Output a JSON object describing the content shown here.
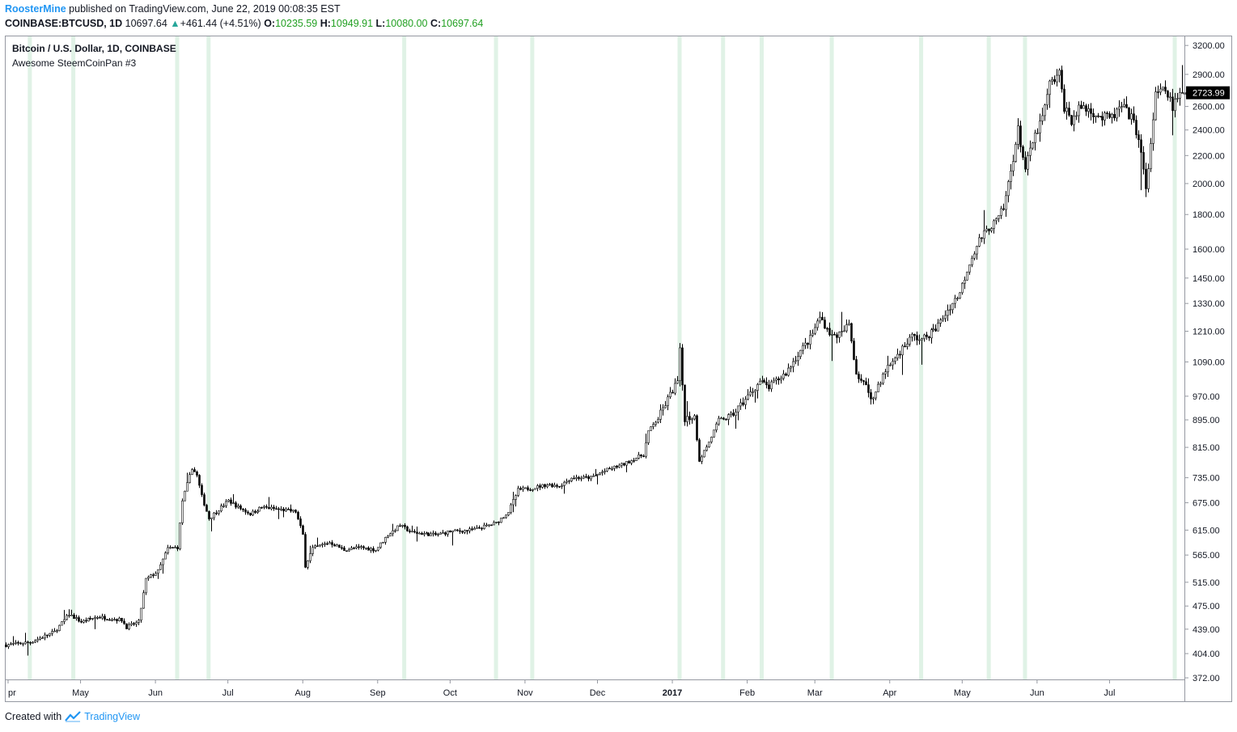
{
  "header": {
    "author": "RoosterMine",
    "published_text": " published on TradingView.com, June 22, 2019 00:08:35 EST",
    "symbol": "COINBASE:BTCUSD, 1D",
    "last_price": "10697.64",
    "change_arrow": "▲",
    "change": "+461.44 (+4.51%)",
    "o_label": "O:",
    "o_value": "10235.59",
    "h_label": "H:",
    "h_value": "10949.91",
    "l_label": "L:",
    "l_value": "10080.00",
    "c_label": "C:",
    "c_value": "10697.64"
  },
  "legend": {
    "title": "Bitcoin / U.S. Dollar, 1D, COINBASE",
    "indicator": "Awesome SteemCoinPan #3"
  },
  "footer": {
    "created_with": "Created with",
    "brand": "TradingView"
  },
  "colors": {
    "candle": "#000000",
    "highlight": "#e0f2e6",
    "price_label_bg": "#000000",
    "price_label_text": "#ffffff",
    "author": "#2196f3"
  },
  "chart_data": {
    "type": "candlestick",
    "scale": "log",
    "x_range": [
      "2016-03-31",
      "2017-08-01"
    ],
    "y_ticks": [
      3200.0,
      2900.0,
      2600.0,
      2400.0,
      2200.0,
      2000.0,
      1800.0,
      1600.0,
      1450.0,
      1330.0,
      1210.0,
      1090.0,
      970.0,
      895.0,
      815.0,
      735.0,
      675.0,
      615.0,
      565.0,
      515.0,
      475.0,
      439.0,
      404.0,
      372.0
    ],
    "x_ticks": [
      {
        "label": "pr",
        "date": "2016-04-01"
      },
      {
        "label": "May",
        "date": "2016-05-01"
      },
      {
        "label": "Jun",
        "date": "2016-06-01"
      },
      {
        "label": "Jul",
        "date": "2016-07-01"
      },
      {
        "label": "Aug",
        "date": "2016-08-01"
      },
      {
        "label": "Sep",
        "date": "2016-09-01"
      },
      {
        "label": "Oct",
        "date": "2016-10-01"
      },
      {
        "label": "Nov",
        "date": "2016-11-01"
      },
      {
        "label": "Dec",
        "date": "2016-12-01"
      },
      {
        "label": "2017",
        "date": "2017-01-01",
        "bold": true
      },
      {
        "label": "Feb",
        "date": "2017-02-01"
      },
      {
        "label": "Mar",
        "date": "2017-03-01"
      },
      {
        "label": "Apr",
        "date": "2017-04-01"
      },
      {
        "label": "May",
        "date": "2017-05-01"
      },
      {
        "label": "Jun",
        "date": "2017-06-01"
      },
      {
        "label": "Jul",
        "date": "2017-07-01"
      }
    ],
    "current_price": 2723.99,
    "current_price_label": "2723.99",
    "highlight_dates": [
      "2016-04-10",
      "2016-04-28",
      "2016-06-10",
      "2016-06-23",
      "2016-09-12",
      "2016-10-20",
      "2016-11-04",
      "2017-01-04",
      "2017-01-22",
      "2017-02-07",
      "2017-03-08",
      "2017-04-14",
      "2017-05-12",
      "2017-05-27",
      "2017-07-28"
    ],
    "path": [
      {
        "date": "2016-03-31",
        "price": 416
      },
      {
        "date": "2016-04-10",
        "price": 420
      },
      {
        "date": "2016-04-20",
        "price": 435
      },
      {
        "date": "2016-04-26",
        "price": 462
      },
      {
        "date": "2016-05-01",
        "price": 450
      },
      {
        "date": "2016-05-08",
        "price": 458
      },
      {
        "date": "2016-05-14",
        "price": 455
      },
      {
        "date": "2016-05-18",
        "price": 453
      },
      {
        "date": "2016-05-20",
        "price": 442
      },
      {
        "date": "2016-05-25",
        "price": 450
      },
      {
        "date": "2016-05-28",
        "price": 520
      },
      {
        "date": "2016-06-02",
        "price": 535
      },
      {
        "date": "2016-06-06",
        "price": 578
      },
      {
        "date": "2016-06-10",
        "price": 580
      },
      {
        "date": "2016-06-12",
        "price": 680
      },
      {
        "date": "2016-06-16",
        "price": 760
      },
      {
        "date": "2016-06-18",
        "price": 740
      },
      {
        "date": "2016-06-20",
        "price": 690
      },
      {
        "date": "2016-06-23",
        "price": 640
      },
      {
        "date": "2016-06-27",
        "price": 660
      },
      {
        "date": "2016-07-01",
        "price": 680
      },
      {
        "date": "2016-07-05",
        "price": 665
      },
      {
        "date": "2016-07-10",
        "price": 650
      },
      {
        "date": "2016-07-15",
        "price": 665
      },
      {
        "date": "2016-07-22",
        "price": 660
      },
      {
        "date": "2016-07-29",
        "price": 655
      },
      {
        "date": "2016-08-01",
        "price": 605
      },
      {
        "date": "2016-08-02",
        "price": 545
      },
      {
        "date": "2016-08-05",
        "price": 578
      },
      {
        "date": "2016-08-12",
        "price": 590
      },
      {
        "date": "2016-08-18",
        "price": 575
      },
      {
        "date": "2016-08-25",
        "price": 580
      },
      {
        "date": "2016-08-31",
        "price": 575
      },
      {
        "date": "2016-09-05",
        "price": 605
      },
      {
        "date": "2016-09-10",
        "price": 625
      },
      {
        "date": "2016-09-15",
        "price": 610
      },
      {
        "date": "2016-09-25",
        "price": 605
      },
      {
        "date": "2016-10-01",
        "price": 612
      },
      {
        "date": "2016-10-10",
        "price": 615
      },
      {
        "date": "2016-10-20",
        "price": 630
      },
      {
        "date": "2016-10-25",
        "price": 655
      },
      {
        "date": "2016-10-29",
        "price": 705
      },
      {
        "date": "2016-11-04",
        "price": 710
      },
      {
        "date": "2016-11-10",
        "price": 718
      },
      {
        "date": "2016-11-15",
        "price": 715
      },
      {
        "date": "2016-11-20",
        "price": 735
      },
      {
        "date": "2016-11-28",
        "price": 735
      },
      {
        "date": "2016-12-05",
        "price": 755
      },
      {
        "date": "2016-12-12",
        "price": 770
      },
      {
        "date": "2016-12-18",
        "price": 790
      },
      {
        "date": "2016-12-20",
        "price": 795
      },
      {
        "date": "2016-12-22",
        "price": 860
      },
      {
        "date": "2016-12-26",
        "price": 900
      },
      {
        "date": "2016-12-30",
        "price": 960
      },
      {
        "date": "2017-01-03",
        "price": 1020
      },
      {
        "date": "2017-01-04",
        "price": 1130
      },
      {
        "date": "2017-01-06",
        "price": 900
      },
      {
        "date": "2017-01-10",
        "price": 905
      },
      {
        "date": "2017-01-12",
        "price": 780
      },
      {
        "date": "2017-01-16",
        "price": 830
      },
      {
        "date": "2017-01-20",
        "price": 895
      },
      {
        "date": "2017-01-25",
        "price": 905
      },
      {
        "date": "2017-01-31",
        "price": 960
      },
      {
        "date": "2017-02-06",
        "price": 1020
      },
      {
        "date": "2017-02-10",
        "price": 1000
      },
      {
        "date": "2017-02-17",
        "price": 1050
      },
      {
        "date": "2017-02-22",
        "price": 1120
      },
      {
        "date": "2017-02-27",
        "price": 1180
      },
      {
        "date": "2017-03-03",
        "price": 1270
      },
      {
        "date": "2017-03-08",
        "price": 1190
      },
      {
        "date": "2017-03-12",
        "price": 1200
      },
      {
        "date": "2017-03-15",
        "price": 1240
      },
      {
        "date": "2017-03-18",
        "price": 1050
      },
      {
        "date": "2017-03-22",
        "price": 1000
      },
      {
        "date": "2017-03-25",
        "price": 960
      },
      {
        "date": "2017-03-27",
        "price": 1010
      },
      {
        "date": "2017-03-31",
        "price": 1070
      },
      {
        "date": "2017-04-05",
        "price": 1130
      },
      {
        "date": "2017-04-10",
        "price": 1190
      },
      {
        "date": "2017-04-14",
        "price": 1175
      },
      {
        "date": "2017-04-20",
        "price": 1220
      },
      {
        "date": "2017-04-25",
        "price": 1300
      },
      {
        "date": "2017-04-30",
        "price": 1380
      },
      {
        "date": "2017-05-04",
        "price": 1530
      },
      {
        "date": "2017-05-08",
        "price": 1650
      },
      {
        "date": "2017-05-12",
        "price": 1720
      },
      {
        "date": "2017-05-15",
        "price": 1760
      },
      {
        "date": "2017-05-18",
        "price": 1830
      },
      {
        "date": "2017-05-20",
        "price": 2000
      },
      {
        "date": "2017-05-24",
        "price": 2400
      },
      {
        "date": "2017-05-27",
        "price": 2100
      },
      {
        "date": "2017-05-30",
        "price": 2300
      },
      {
        "date": "2017-06-03",
        "price": 2500
      },
      {
        "date": "2017-06-06",
        "price": 2800
      },
      {
        "date": "2017-06-10",
        "price": 2900
      },
      {
        "date": "2017-06-12",
        "price": 2600
      },
      {
        "date": "2017-06-15",
        "price": 2480
      },
      {
        "date": "2017-06-19",
        "price": 2600
      },
      {
        "date": "2017-06-24",
        "price": 2550
      },
      {
        "date": "2017-06-28",
        "price": 2500
      },
      {
        "date": "2017-07-02",
        "price": 2500
      },
      {
        "date": "2017-07-06",
        "price": 2600
      },
      {
        "date": "2017-07-10",
        "price": 2500
      },
      {
        "date": "2017-07-13",
        "price": 2350
      },
      {
        "date": "2017-07-16",
        "price": 1950
      },
      {
        "date": "2017-07-18",
        "price": 2300
      },
      {
        "date": "2017-07-20",
        "price": 2700
      },
      {
        "date": "2017-07-24",
        "price": 2750
      },
      {
        "date": "2017-07-27",
        "price": 2600
      },
      {
        "date": "2017-07-30",
        "price": 2700
      },
      {
        "date": "2017-08-01",
        "price": 2724
      }
    ]
  }
}
